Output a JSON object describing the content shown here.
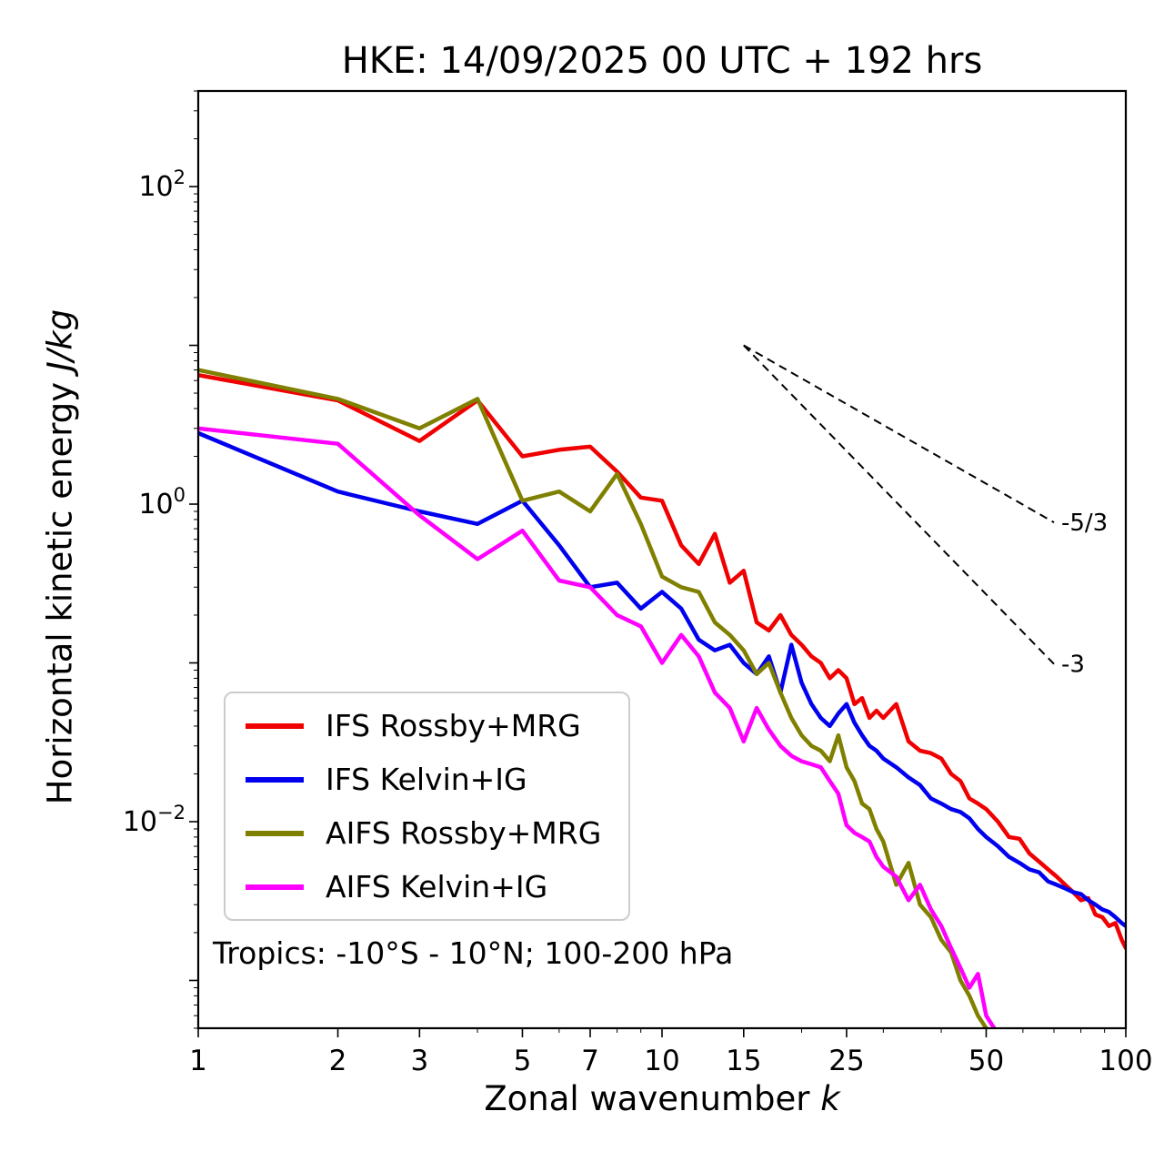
{
  "chart_data": {
    "type": "line",
    "title": "HKE: 14/09/2025 00 UTC + 192 hrs",
    "xlabel_text": "Zonal wavenumber ",
    "xlabel_math": "k",
    "ylabel_text": "Horizontal kinetic energy ",
    "ylabel_math": "J/kg",
    "xscale": "log",
    "yscale": "log",
    "xlim": [
      1,
      100
    ],
    "ylim": [
      0.0005,
      400
    ],
    "x_ticks": [
      1,
      2,
      3,
      5,
      7,
      10,
      15,
      25,
      50,
      100
    ],
    "x_minor_ticks": [
      4,
      6,
      8,
      9,
      20,
      30,
      40,
      60,
      70,
      80,
      90
    ],
    "y_tick_exponents": [
      2,
      1,
      0,
      -1,
      -2,
      -3
    ],
    "y_tick_exponents_labeled": [
      2,
      0,
      -2
    ],
    "grid": false,
    "legend_position": "lower left inside",
    "annotation": "Tropics: -10°S - 10°N; 100-200 hPa",
    "reference_lines": [
      {
        "label": "-5/3",
        "slope": -1.6667,
        "k_start": 15,
        "k_end": 70,
        "E_start": 10
      },
      {
        "label": "-3",
        "slope": -3,
        "k_start": 15,
        "k_end": 70,
        "E_start": 10
      }
    ],
    "series": [
      {
        "name": "IFS Rossby+MRG",
        "color": "#f00000",
        "k": [
          1,
          2,
          3,
          4,
          5,
          6,
          7,
          8,
          9,
          10,
          11,
          12,
          13,
          14,
          15,
          16,
          17,
          18,
          19,
          20,
          21,
          22,
          23,
          24,
          25,
          26,
          27,
          28,
          29,
          30,
          32,
          34,
          36,
          38,
          40,
          42,
          44,
          46,
          48,
          50,
          53,
          56,
          59,
          62,
          65,
          68,
          71,
          74,
          77,
          80,
          83,
          86,
          89,
          92,
          95,
          98,
          100
        ],
        "E": [
          6.5,
          4.5,
          2.5,
          4.5,
          2.0,
          2.2,
          2.3,
          1.6,
          1.1,
          1.05,
          0.55,
          0.42,
          0.65,
          0.32,
          0.38,
          0.18,
          0.16,
          0.2,
          0.15,
          0.13,
          0.11,
          0.1,
          0.08,
          0.09,
          0.08,
          0.055,
          0.06,
          0.045,
          0.05,
          0.045,
          0.055,
          0.032,
          0.028,
          0.027,
          0.025,
          0.02,
          0.018,
          0.014,
          0.013,
          0.012,
          0.01,
          0.008,
          0.0078,
          0.0063,
          0.0056,
          0.005,
          0.0045,
          0.004,
          0.0036,
          0.0032,
          0.0033,
          0.0026,
          0.0025,
          0.0022,
          0.0023,
          0.0018,
          0.0016
        ]
      },
      {
        "name": "IFS Kelvin+IG",
        "color": "#0000ee",
        "k": [
          1,
          2,
          3,
          4,
          5,
          6,
          7,
          8,
          9,
          10,
          11,
          12,
          13,
          14,
          15,
          16,
          17,
          18,
          19,
          20,
          21,
          22,
          23,
          24,
          25,
          26,
          27,
          28,
          29,
          30,
          32,
          34,
          36,
          38,
          40,
          42,
          44,
          46,
          48,
          50,
          53,
          56,
          59,
          62,
          65,
          68,
          71,
          74,
          77,
          80,
          83,
          86,
          89,
          92,
          95,
          98,
          100
        ],
        "E": [
          2.8,
          1.2,
          0.9,
          0.75,
          1.05,
          0.55,
          0.3,
          0.32,
          0.22,
          0.28,
          0.22,
          0.14,
          0.12,
          0.13,
          0.1,
          0.085,
          0.11,
          0.065,
          0.13,
          0.075,
          0.055,
          0.045,
          0.04,
          0.048,
          0.055,
          0.042,
          0.035,
          0.03,
          0.028,
          0.025,
          0.022,
          0.019,
          0.017,
          0.014,
          0.013,
          0.012,
          0.0115,
          0.0105,
          0.009,
          0.008,
          0.007,
          0.006,
          0.0055,
          0.005,
          0.0048,
          0.0042,
          0.004,
          0.0038,
          0.0036,
          0.0035,
          0.0032,
          0.003,
          0.0028,
          0.0027,
          0.0025,
          0.0023,
          0.0022
        ]
      },
      {
        "name": "AIFS Rossby+MRG",
        "color": "#808000",
        "k": [
          1,
          2,
          3,
          4,
          5,
          6,
          7,
          8,
          9,
          10,
          11,
          12,
          13,
          14,
          15,
          16,
          17,
          18,
          19,
          20,
          21,
          22,
          23,
          24,
          25,
          26,
          27,
          28,
          29,
          30,
          32,
          34,
          36,
          38,
          40,
          42,
          44,
          46,
          48,
          50,
          52
        ],
        "E": [
          7.0,
          4.6,
          3.0,
          4.6,
          1.05,
          1.2,
          0.9,
          1.55,
          0.75,
          0.35,
          0.3,
          0.28,
          0.18,
          0.15,
          0.12,
          0.085,
          0.1,
          0.065,
          0.045,
          0.035,
          0.03,
          0.028,
          0.024,
          0.035,
          0.022,
          0.018,
          0.013,
          0.012,
          0.009,
          0.0075,
          0.004,
          0.0055,
          0.003,
          0.0025,
          0.0018,
          0.0015,
          0.001,
          0.0008,
          0.0006,
          0.0005,
          0.00042
        ]
      },
      {
        "name": "AIFS Kelvin+IG",
        "color": "#ff00ff",
        "k": [
          1,
          2,
          3,
          4,
          5,
          6,
          7,
          8,
          9,
          10,
          11,
          12,
          13,
          14,
          15,
          16,
          17,
          18,
          19,
          20,
          21,
          22,
          23,
          24,
          25,
          26,
          27,
          28,
          29,
          30,
          32,
          34,
          36,
          38,
          40,
          42,
          44,
          46,
          48,
          50,
          52,
          54
        ],
        "E": [
          3.0,
          2.4,
          0.85,
          0.45,
          0.68,
          0.33,
          0.3,
          0.2,
          0.17,
          0.1,
          0.15,
          0.11,
          0.065,
          0.052,
          0.032,
          0.052,
          0.038,
          0.03,
          0.026,
          0.024,
          0.023,
          0.022,
          0.018,
          0.015,
          0.0095,
          0.0085,
          0.008,
          0.0075,
          0.006,
          0.0052,
          0.0045,
          0.0032,
          0.004,
          0.0028,
          0.0022,
          0.0016,
          0.0012,
          0.0009,
          0.0011,
          0.0006,
          0.0005,
          0.00042
        ]
      }
    ]
  }
}
